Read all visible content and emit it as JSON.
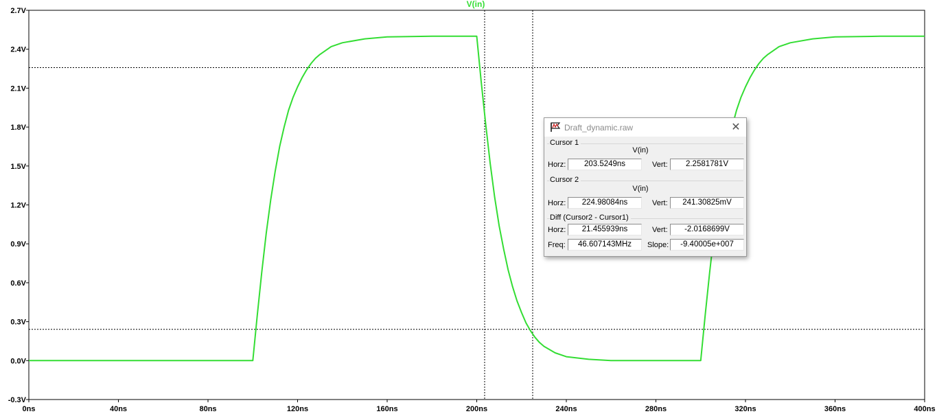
{
  "trace": {
    "label": "V(in)",
    "color": "#33dd33"
  },
  "chart_data": {
    "type": "line",
    "x_unit": "ns",
    "y_unit": "V",
    "xlim": [
      0,
      400
    ],
    "ylim": [
      -0.3,
      2.7
    ],
    "x_ticks": [
      "0ns",
      "40ns",
      "80ns",
      "120ns",
      "160ns",
      "200ns",
      "240ns",
      "280ns",
      "320ns",
      "360ns",
      "400ns"
    ],
    "y_ticks": [
      "2.7V",
      "2.4V",
      "2.1V",
      "1.8V",
      "1.5V",
      "1.2V",
      "0.9V",
      "0.6V",
      "0.3V",
      "0.0V",
      "-0.3V"
    ],
    "series": [
      {
        "name": "V(in)",
        "x": [
          0,
          100,
          102,
          104,
          106,
          108,
          110,
          112,
          114,
          116,
          118,
          120,
          122,
          124,
          126,
          128,
          130,
          135,
          140,
          150,
          160,
          180,
          200,
          202,
          204,
          206,
          208,
          210,
          212,
          214,
          216,
          218,
          220,
          222,
          224,
          226,
          228,
          230,
          235,
          240,
          250,
          260,
          280,
          300,
          302,
          304,
          306,
          308,
          310,
          312,
          314,
          316,
          318,
          320,
          322,
          324,
          326,
          328,
          330,
          335,
          340,
          350,
          360,
          380,
          400
        ],
        "y": [
          0,
          0,
          0.35,
          0.68,
          0.98,
          1.24,
          1.46,
          1.65,
          1.8,
          1.93,
          2.03,
          2.11,
          2.18,
          2.24,
          2.29,
          2.33,
          2.36,
          2.42,
          2.45,
          2.48,
          2.495,
          2.5,
          2.5,
          2.15,
          1.82,
          1.52,
          1.26,
          1.04,
          0.86,
          0.7,
          0.57,
          0.46,
          0.37,
          0.29,
          0.23,
          0.18,
          0.14,
          0.11,
          0.06,
          0.03,
          0.01,
          0,
          0,
          0,
          0.35,
          0.68,
          0.98,
          1.24,
          1.46,
          1.65,
          1.8,
          1.93,
          2.03,
          2.11,
          2.18,
          2.24,
          2.29,
          2.33,
          2.36,
          2.42,
          2.45,
          2.48,
          2.495,
          2.5,
          2.5
        ]
      }
    ],
    "cursors": {
      "cursor1": {
        "x": 203.5249,
        "y": 2.2581781
      },
      "cursor2": {
        "x": 224.98084,
        "y": 0.24130825
      }
    }
  },
  "dialog": {
    "title": "Draft_dynamic.raw",
    "close_glyph": "✕",
    "cursor1": {
      "group_label": "Cursor 1",
      "trace": "V(in)",
      "horz_label": "Horz:",
      "horz": "203.5249ns",
      "vert_label": "Vert:",
      "vert": "2.2581781V"
    },
    "cursor2": {
      "group_label": "Cursor 2",
      "trace": "V(in)",
      "horz_label": "Horz:",
      "horz": "224.98084ns",
      "vert_label": "Vert:",
      "vert": "241.30825mV"
    },
    "diff": {
      "group_label": "Diff (Cursor2 - Cursor1)",
      "horz_label": "Horz:",
      "horz": "21.455939ns",
      "vert_label": "Vert:",
      "vert": "-2.0168699V",
      "freq_label": "Freq:",
      "freq": "46.607143MHz",
      "slope_label": "Slope:",
      "slope": "-9.40005e+007"
    }
  }
}
